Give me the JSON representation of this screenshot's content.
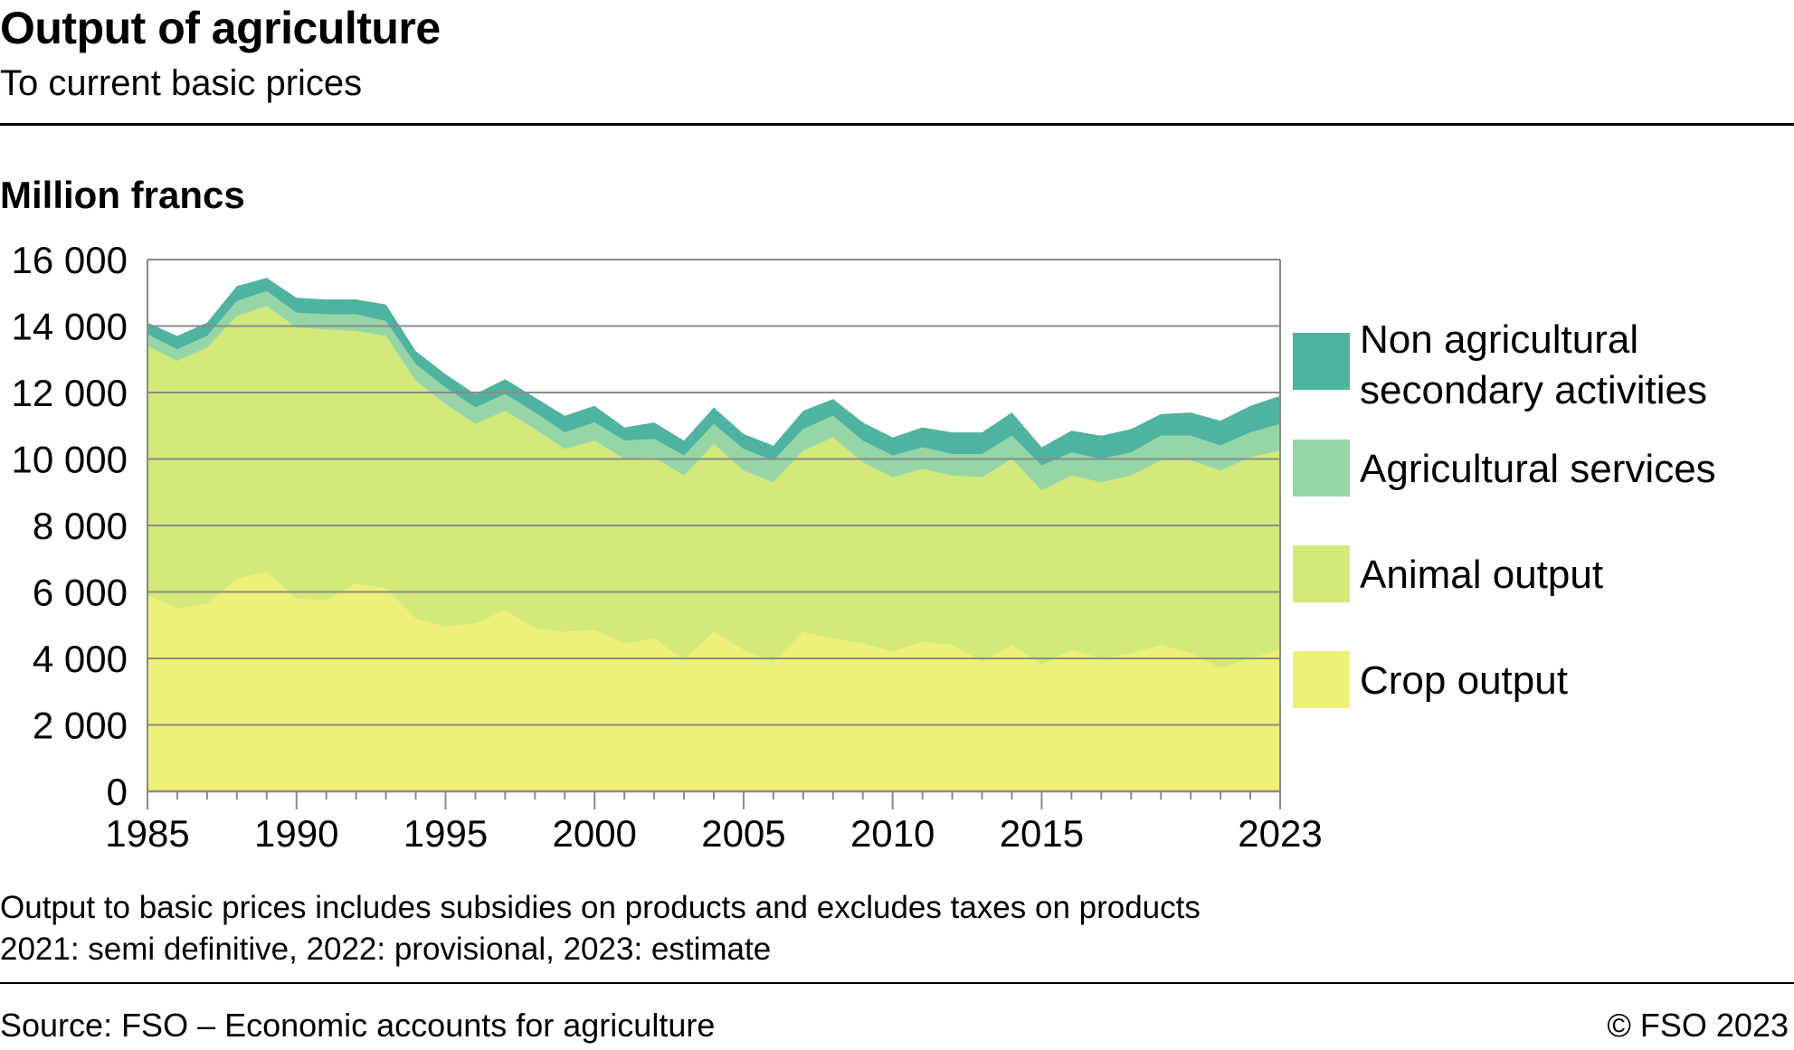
{
  "header": {
    "title": "Output of agriculture",
    "subtitle": "To current basic prices"
  },
  "notes": [
    "Output to basic prices includes subsidies on products and excludes taxes on products",
    "2021: semi definitive, 2022: provisional, 2023: estimate"
  ],
  "footer": {
    "source": "Source: FSO – Economic accounts for agriculture",
    "copyright": "© FSO 2023"
  },
  "chart_data": {
    "type": "area",
    "stacked": true,
    "ylabel": "Million francs",
    "ylim": [
      0,
      16000
    ],
    "yticks": [
      0,
      2000,
      4000,
      6000,
      8000,
      10000,
      12000,
      14000,
      16000
    ],
    "ytick_labels": [
      "0",
      "2 000",
      "4 000",
      "6 000",
      "8 000",
      "10 000",
      "12 000",
      "14 000",
      "16 000"
    ],
    "xlim": [
      1985,
      2023
    ],
    "xticks": [
      1985,
      1990,
      1995,
      2000,
      2005,
      2010,
      2015,
      2023
    ],
    "xtick_labels": [
      "1985",
      "1990",
      "1995",
      "2000",
      "2005",
      "2010",
      "2015",
      "2023"
    ],
    "grid": "horizontal",
    "legend_position": "right",
    "x": [
      1985,
      1986,
      1987,
      1988,
      1989,
      1990,
      1991,
      1992,
      1993,
      1994,
      1995,
      1996,
      1997,
      1998,
      1999,
      2000,
      2001,
      2002,
      2003,
      2004,
      2005,
      2006,
      2007,
      2008,
      2009,
      2010,
      2011,
      2012,
      2013,
      2014,
      2015,
      2016,
      2017,
      2018,
      2019,
      2020,
      2021,
      2022,
      2023
    ],
    "series": [
      {
        "name": "Crop output",
        "color": "#eff078",
        "values": [
          5900,
          5500,
          5650,
          6400,
          6600,
          5800,
          5750,
          6250,
          6100,
          5200,
          4950,
          5050,
          5450,
          4900,
          4800,
          4850,
          4450,
          4600,
          3950,
          4800,
          4250,
          3900,
          4800,
          4600,
          4450,
          4200,
          4500,
          4400,
          3900,
          4400,
          3800,
          4250,
          4000,
          4150,
          4400,
          4150,
          3700,
          4000,
          4250
        ]
      },
      {
        "name": "Animal output",
        "color": "#d3e979",
        "values": [
          7500,
          7450,
          7700,
          7900,
          8000,
          8150,
          8150,
          7600,
          7600,
          7150,
          6700,
          6000,
          6000,
          6000,
          5500,
          5700,
          5550,
          5450,
          5550,
          5650,
          5400,
          5400,
          5450,
          6050,
          5450,
          5250,
          5200,
          5100,
          5550,
          5600,
          5250,
          5250,
          5300,
          5350,
          5550,
          5800,
          5950,
          6050,
          6000
        ]
      },
      {
        "name": "Agricultural services",
        "color": "#96d6a6",
        "values": [
          350,
          350,
          350,
          450,
          450,
          450,
          450,
          500,
          450,
          500,
          500,
          500,
          500,
          500,
          500,
          550,
          550,
          550,
          600,
          600,
          650,
          650,
          650,
          650,
          650,
          650,
          650,
          650,
          700,
          700,
          750,
          700,
          700,
          700,
          750,
          750,
          750,
          750,
          800
        ]
      },
      {
        "name": "Non agricultural secondary activities",
        "color": "#4fb3a1",
        "values": [
          350,
          400,
          400,
          450,
          400,
          450,
          450,
          450,
          500,
          400,
          400,
          400,
          450,
          450,
          500,
          500,
          400,
          500,
          450,
          500,
          450,
          450,
          550,
          500,
          550,
          550,
          600,
          650,
          650,
          700,
          550,
          650,
          700,
          700,
          650,
          700,
          750,
          800,
          850
        ]
      }
    ]
  }
}
